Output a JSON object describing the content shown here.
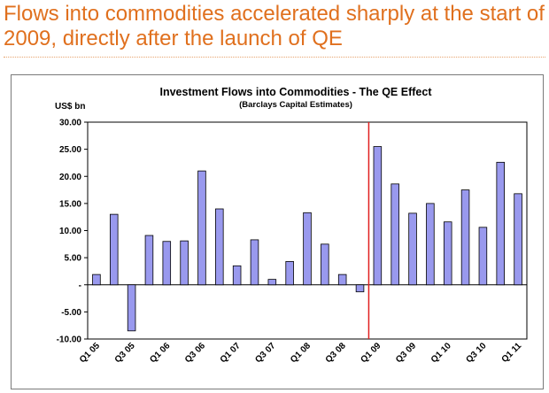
{
  "slide": {
    "headline": "Flows into commodities accelerated sharply at the start of 2009, directly after the launch of QE"
  },
  "chart_data": {
    "type": "bar",
    "title": "Investment Flows into Commodities - The  QE Effect",
    "subtitle": "(Barclays Capital Estimates)",
    "ylabel": "US$ bn",
    "ylim": [
      -10,
      30
    ],
    "yticks": [
      30,
      25,
      20,
      15,
      10,
      5,
      0,
      -5,
      -10
    ],
    "ytick_labels": [
      "30.00",
      "25.00",
      "20.00",
      "15.00",
      "10.00",
      "5.00",
      "-",
      "-5.00",
      "-10.00"
    ],
    "categories": [
      "Q1 05",
      "Q2 05",
      "Q3 05",
      "Q4 05",
      "Q1 06",
      "Q2 06",
      "Q3 06",
      "Q4 06",
      "Q1 07",
      "Q2 07",
      "Q3 07",
      "Q4 07",
      "Q1 08",
      "Q2 08",
      "Q3 08",
      "Q4 08",
      "Q1 09",
      "Q2 09",
      "Q3 09",
      "Q4 09",
      "Q1 10",
      "Q2 10",
      "Q3 10",
      "Q4 10",
      "Q1 11"
    ],
    "xtick_labels": [
      "Q1 05",
      "",
      "Q3 05",
      "",
      "Q1 06",
      "",
      "Q3 06",
      "",
      "Q1 07",
      "",
      "Q3 07",
      "",
      "Q1 08",
      "",
      "Q3 08",
      "",
      "Q1 09",
      "",
      "Q3 09",
      "",
      "Q1 10",
      "",
      "Q3 10",
      "",
      "Q1 11"
    ],
    "values": [
      1.9,
      13.0,
      -8.5,
      9.1,
      8.0,
      8.1,
      21.0,
      14.0,
      3.5,
      8.3,
      1.0,
      4.3,
      13.3,
      7.5,
      1.9,
      -1.3,
      25.5,
      18.6,
      13.2,
      15.0,
      11.6,
      17.5,
      10.6,
      22.6,
      16.8
    ],
    "qe_marker_after_index": 15,
    "grid": false,
    "legend": "none",
    "colors": {
      "bar_fill": "#9999ee",
      "bar_stroke": "#000000",
      "qe_line": "#e02020",
      "headline": "#e0701e",
      "frame": "#7a7a7a"
    }
  }
}
